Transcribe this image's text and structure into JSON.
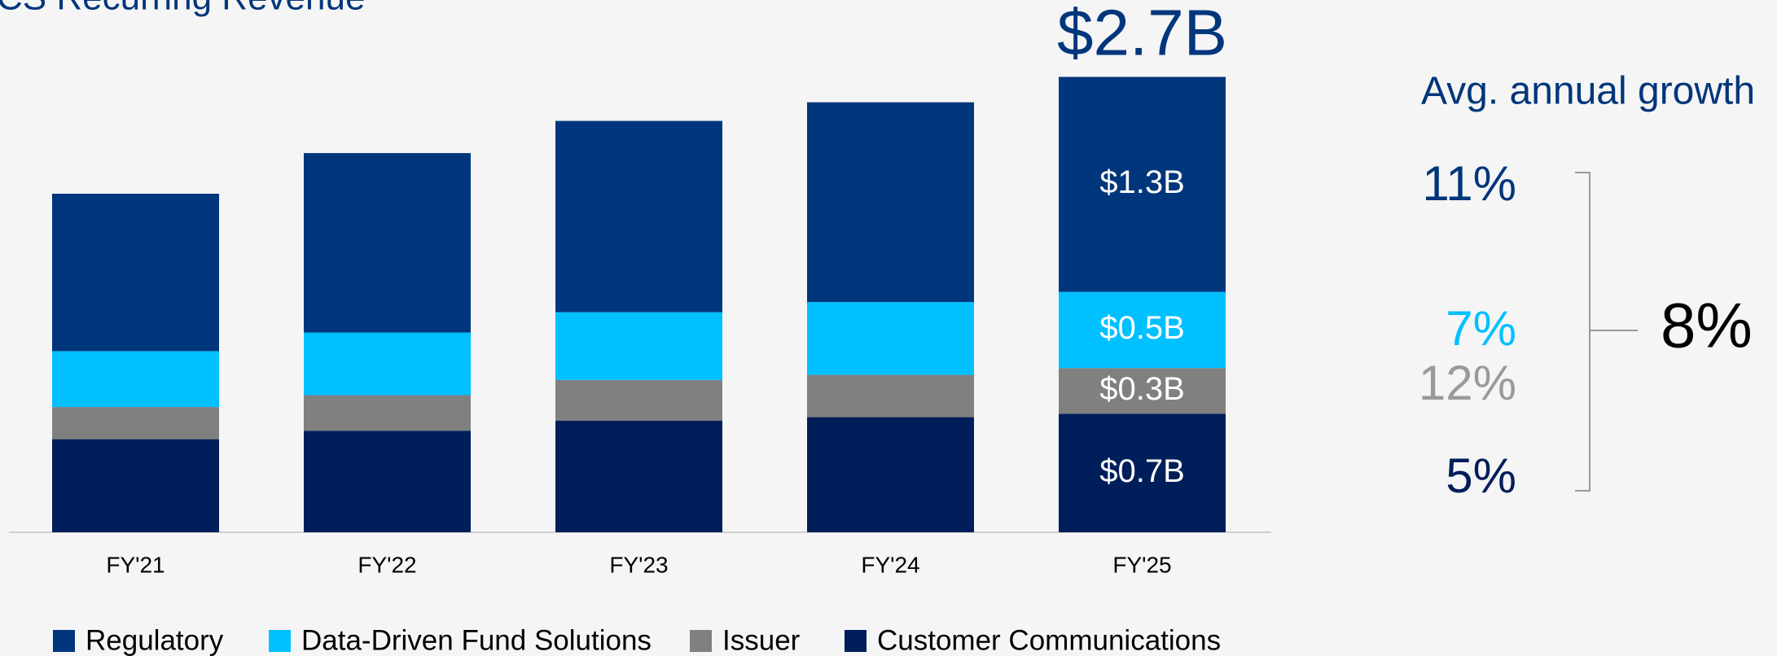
{
  "chart_data": {
    "type": "stacked-bar",
    "title": "CS Recurring Revenue",
    "categories": [
      "FY'21",
      "FY'22",
      "FY'23",
      "FY'24",
      "FY'25"
    ],
    "series": [
      {
        "name": "Regulatory",
        "color": "#00367b",
        "values": [
          0.93,
          1.06,
          1.13,
          1.18,
          1.27
        ],
        "value_labels": [
          null,
          null,
          null,
          null,
          "$1.3B"
        ]
      },
      {
        "name": "Data-Driven Fund Solutions",
        "color": "#00c0ff",
        "values": [
          0.33,
          0.37,
          0.4,
          0.43,
          0.45
        ],
        "value_labels": [
          null,
          null,
          null,
          null,
          "$0.5B"
        ]
      },
      {
        "name": "Issuer",
        "color": "#808080",
        "values": [
          0.19,
          0.21,
          0.24,
          0.25,
          0.27
        ],
        "value_labels": [
          null,
          null,
          null,
          null,
          "$0.3B"
        ]
      },
      {
        "name": "Customer Communications",
        "color": "#001e5a",
        "values": [
          0.55,
          0.6,
          0.66,
          0.68,
          0.7
        ],
        "value_labels": [
          null,
          null,
          null,
          null,
          "$0.7B"
        ]
      }
    ],
    "total_value": 2.7,
    "total_label": "$2.7B",
    "growth": {
      "title": "Avg. annual growth",
      "items": [
        {
          "label": "11%",
          "color": "#00367b"
        },
        {
          "label": "7%",
          "color": "#00c0ff"
        },
        {
          "label": "12%",
          "color": "#9a9a9a"
        },
        {
          "label": "5%",
          "color": "#001e5a"
        }
      ],
      "overall": "8%"
    }
  }
}
